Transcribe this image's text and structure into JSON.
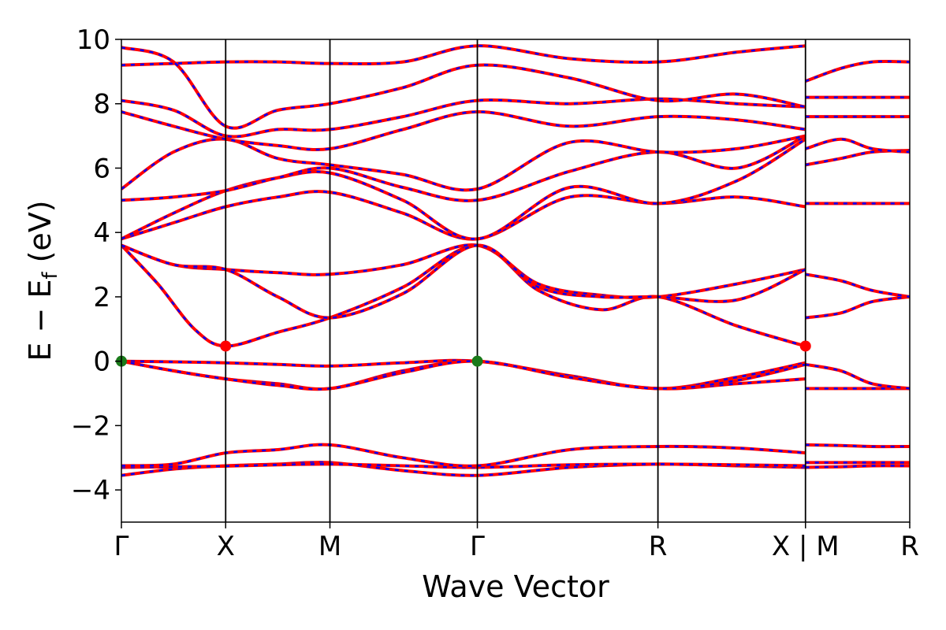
{
  "chart_data": {
    "type": "line",
    "title": "",
    "xlabel": "Wave Vector",
    "ylabel": "E − E",
    "ylabel_sub": "f",
    "ylabel_unit": " (eV)",
    "ylim": [
      -5,
      10
    ],
    "yticks": [
      -4,
      -2,
      0,
      2,
      4,
      6,
      8,
      10
    ],
    "ytick_labels": [
      "−4",
      "−2",
      "0",
      "2",
      "4",
      "6",
      "8",
      "10"
    ],
    "grid": false,
    "legend": "none",
    "kpath": [
      {
        "label": "Γ",
        "pos": 0.0
      },
      {
        "label": "X",
        "pos": 1.0
      },
      {
        "label": "M",
        "pos": 2.0
      },
      {
        "label": "Γ",
        "pos": 3.414
      },
      {
        "label": "R",
        "pos": 5.146
      },
      {
        "label": "X | M",
        "pos": 6.561
      },
      {
        "label": "R",
        "pos": 7.561
      }
    ],
    "x_range": [
      0,
      7.561
    ],
    "colors": {
      "band": "#ff0000",
      "band_overlay": "#0000ff",
      "cbm": "#ff0000",
      "vbm": "#1a7a1a"
    },
    "markers": [
      {
        "type": "CBM",
        "x": 1.0,
        "y": 0.47
      },
      {
        "type": "CBM",
        "x": 6.561,
        "y": 0.47
      },
      {
        "type": "VBM",
        "x": 0.0,
        "y": 0.0
      },
      {
        "type": "VBM",
        "x": 3.414,
        "y": 0.0
      }
    ],
    "series": [
      {
        "x": [
          0,
          0.5,
          1,
          1.5,
          2,
          2.7,
          3.414,
          4.3,
          5.146,
          5.9,
          6.561
        ],
        "y": [
          -3.55,
          -3.35,
          -3.25,
          -3.2,
          -3.15,
          -3.4,
          -3.55,
          -3.3,
          -3.2,
          -3.25,
          -3.3
        ]
      },
      {
        "x": [
          0,
          0.5,
          1,
          1.5,
          2,
          2.7,
          3.414,
          4.3,
          5.146,
          5.9,
          6.561
        ],
        "y": [
          -3.3,
          -3.28,
          -3.26,
          -3.22,
          -3.2,
          -3.25,
          -3.3,
          -3.22,
          -3.2,
          -3.22,
          -3.25
        ]
      },
      {
        "x": [
          0,
          0.5,
          1,
          1.5,
          2,
          2.7,
          3.414,
          4.3,
          5.146,
          5.9,
          6.561
        ],
        "y": [
          -3.25,
          -3.2,
          -2.85,
          -2.75,
          -2.6,
          -3.0,
          -3.25,
          -2.75,
          -2.65,
          -2.7,
          -2.85
        ]
      },
      {
        "x": [
          0,
          0.5,
          1,
          1.5,
          2,
          2.7,
          3.414,
          4.3,
          5.146,
          5.9,
          6.561
        ],
        "y": [
          0.0,
          -0.3,
          -0.55,
          -0.7,
          -0.85,
          -0.3,
          0.0,
          -0.5,
          -0.85,
          -0.7,
          -0.55
        ]
      },
      {
        "x": [
          0,
          0.5,
          1,
          1.5,
          2,
          2.7,
          3.414,
          4.3,
          5.146,
          5.9,
          6.561
        ],
        "y": [
          0.0,
          -0.02,
          -0.05,
          -0.1,
          -0.15,
          -0.05,
          0.0,
          -0.45,
          -0.85,
          -0.5,
          -0.05
        ]
      },
      {
        "x": [
          0,
          0.5,
          1,
          1.5,
          2,
          2.7,
          3.414,
          4.3,
          5.146,
          5.9,
          6.561
        ],
        "y": [
          0.0,
          -0.3,
          -0.55,
          -0.75,
          -0.85,
          -0.35,
          0.0,
          -0.5,
          -0.85,
          -0.6,
          -0.1
        ]
      },
      {
        "x": [
          0,
          0.35,
          0.7,
          1,
          1.5,
          2,
          2.7,
          3.414,
          4.0,
          4.6,
          5.146,
          5.9,
          6.561
        ],
        "y": [
          3.6,
          2.4,
          1.0,
          0.47,
          0.9,
          1.35,
          2.3,
          3.6,
          2.2,
          1.6,
          2.0,
          1.1,
          0.47
        ]
      },
      {
        "x": [
          0,
          0.5,
          1,
          1.5,
          2,
          2.7,
          3.414,
          4.0,
          4.6,
          5.146,
          5.9,
          6.561
        ],
        "y": [
          3.6,
          3.0,
          2.85,
          2.75,
          2.7,
          3.0,
          3.6,
          2.4,
          2.05,
          2.0,
          2.4,
          2.85
        ]
      },
      {
        "x": [
          0,
          0.5,
          1,
          1.5,
          2,
          2.7,
          3.414,
          4.0,
          4.6,
          5.146,
          5.9,
          6.561
        ],
        "y": [
          3.6,
          3.0,
          2.85,
          2.0,
          1.35,
          2.1,
          3.6,
          2.3,
          2.0,
          2.0,
          1.9,
          2.85
        ]
      },
      {
        "x": [
          0,
          0.5,
          1,
          1.5,
          2,
          2.7,
          3.414,
          4.3,
          5.146,
          5.9,
          6.561
        ],
        "y": [
          3.8,
          4.3,
          4.8,
          5.1,
          5.25,
          4.6,
          3.8,
          5.1,
          4.9,
          5.1,
          4.8
        ]
      },
      {
        "x": [
          0,
          0.5,
          1,
          1.5,
          2,
          2.7,
          3.414,
          4.3,
          5.146,
          5.9,
          6.561
        ],
        "y": [
          3.8,
          4.6,
          5.3,
          5.7,
          5.85,
          5.0,
          3.8,
          5.4,
          4.9,
          5.6,
          6.9
        ]
      },
      {
        "x": [
          0,
          0.5,
          1,
          1.5,
          2,
          2.7,
          3.414,
          4.3,
          5.146,
          5.9,
          6.561
        ],
        "y": [
          5.0,
          5.1,
          5.3,
          5.7,
          6.0,
          5.4,
          5.0,
          5.9,
          6.5,
          6.0,
          7.0
        ]
      },
      {
        "x": [
          0,
          0.5,
          1,
          1.5,
          2,
          2.7,
          3.414,
          4.3,
          5.146,
          5.9,
          6.561
        ],
        "y": [
          5.35,
          6.5,
          6.9,
          6.3,
          6.1,
          5.8,
          5.35,
          6.8,
          6.5,
          6.6,
          7.0
        ]
      },
      {
        "x": [
          0,
          0.5,
          1,
          1.5,
          2,
          2.7,
          3.414,
          4.3,
          5.146,
          5.9,
          6.561
        ],
        "y": [
          7.75,
          7.3,
          6.9,
          6.7,
          6.6,
          7.2,
          7.75,
          7.3,
          7.6,
          7.5,
          7.2
        ]
      },
      {
        "x": [
          0,
          0.5,
          1,
          1.5,
          2,
          2.7,
          3.414,
          4.3,
          5.146,
          5.9,
          6.561
        ],
        "y": [
          8.1,
          7.8,
          7.0,
          7.2,
          7.2,
          7.6,
          8.1,
          8.0,
          8.15,
          8.0,
          7.9
        ]
      },
      {
        "x": [
          0,
          0.5,
          1,
          1.5,
          2,
          2.7,
          3.414,
          4.3,
          5.146,
          5.9,
          6.561
        ],
        "y": [
          9.2,
          9.25,
          9.3,
          9.3,
          9.25,
          9.3,
          9.8,
          9.4,
          9.3,
          9.6,
          9.8
        ]
      },
      {
        "x": [
          0,
          0.5,
          1,
          1.5,
          2,
          2.7,
          3.414,
          4.3,
          5.146,
          5.9,
          6.561
        ],
        "y": [
          9.75,
          9.3,
          7.3,
          7.8,
          8.0,
          8.5,
          9.2,
          8.8,
          8.1,
          8.3,
          7.9
        ]
      },
      {
        "x": [
          6.561,
          6.9,
          7.2,
          7.561
        ],
        "y": [
          -0.85,
          -0.85,
          -0.85,
          -0.85
        ]
      },
      {
        "x": [
          6.561,
          6.9,
          7.2,
          7.561
        ],
        "y": [
          -0.1,
          -0.3,
          -0.7,
          -0.85
        ]
      },
      {
        "x": [
          6.561,
          6.9,
          7.2,
          7.561
        ],
        "y": [
          -3.3,
          -3.28,
          -3.25,
          -3.25
        ]
      },
      {
        "x": [
          6.561,
          6.9,
          7.2,
          7.561
        ],
        "y": [
          -3.15,
          -3.15,
          -3.15,
          -3.15
        ]
      },
      {
        "x": [
          6.561,
          6.9,
          7.2,
          7.561
        ],
        "y": [
          -2.6,
          -2.62,
          -2.65,
          -2.65
        ]
      },
      {
        "x": [
          6.561,
          6.9,
          7.2,
          7.561
        ],
        "y": [
          1.35,
          1.5,
          1.85,
          2.0
        ]
      },
      {
        "x": [
          6.561,
          6.9,
          7.2,
          7.561
        ],
        "y": [
          2.7,
          2.5,
          2.2,
          2.0
        ]
      },
      {
        "x": [
          6.561,
          6.9,
          7.2,
          7.561
        ],
        "y": [
          6.1,
          6.3,
          6.5,
          6.55
        ]
      },
      {
        "x": [
          6.561,
          6.9,
          7.2,
          7.561
        ],
        "y": [
          6.6,
          6.9,
          6.6,
          6.5
        ]
      },
      {
        "x": [
          6.561,
          6.9,
          7.2,
          7.561
        ],
        "y": [
          7.6,
          7.6,
          7.6,
          7.6
        ]
      },
      {
        "x": [
          6.561,
          6.9,
          7.2,
          7.561
        ],
        "y": [
          8.2,
          8.2,
          8.2,
          8.2
        ]
      },
      {
        "x": [
          6.561,
          6.9,
          7.2,
          7.561
        ],
        "y": [
          8.7,
          9.1,
          9.3,
          9.3
        ]
      },
      {
        "x": [
          6.561,
          6.9,
          7.2,
          7.561
        ],
        "y": [
          4.9,
          4.9,
          4.9,
          4.9
        ]
      }
    ]
  }
}
